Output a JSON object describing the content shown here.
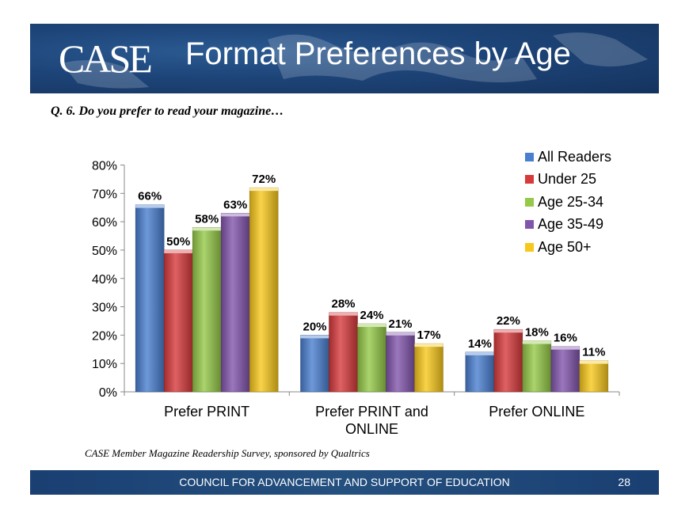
{
  "header": {
    "logo": "CASE",
    "title": "Format Preferences by Age"
  },
  "question": "Q. 6. Do you prefer to read your magazine…",
  "source": "CASE Member Magazine Readership Survey, sponsored by Qualtrics",
  "footer": {
    "text": "COUNCIL FOR ADVANCEMENT AND SUPPORT OF EDUCATION",
    "page": "28"
  },
  "chart_data": {
    "type": "bar",
    "categories": [
      [
        "Prefer PRINT"
      ],
      [
        "Prefer PRINT and",
        "ONLINE"
      ],
      [
        "Prefer ONLINE"
      ]
    ],
    "series": [
      {
        "name": "All Readers",
        "values": [
          66,
          20,
          14
        ],
        "color": "#4a7fd0"
      },
      {
        "name": "Under 25",
        "values": [
          50,
          28,
          22
        ],
        "color": "#d73a3c"
      },
      {
        "name": "Age 25-34",
        "values": [
          58,
          24,
          18
        ],
        "color": "#95c948"
      },
      {
        "name": "Age 35-49",
        "values": [
          63,
          21,
          16
        ],
        "color": "#8255ac"
      },
      {
        "name": "Age 50+",
        "values": [
          72,
          17,
          11
        ],
        "color": "#f7c81c"
      }
    ],
    "ylim": [
      0,
      80
    ],
    "yticks": [
      "0%",
      "10%",
      "20%",
      "30%",
      "40%",
      "50%",
      "60%",
      "70%",
      "80%"
    ],
    "value_suffix": "%",
    "legend_position": "top-right",
    "grid": false
  }
}
